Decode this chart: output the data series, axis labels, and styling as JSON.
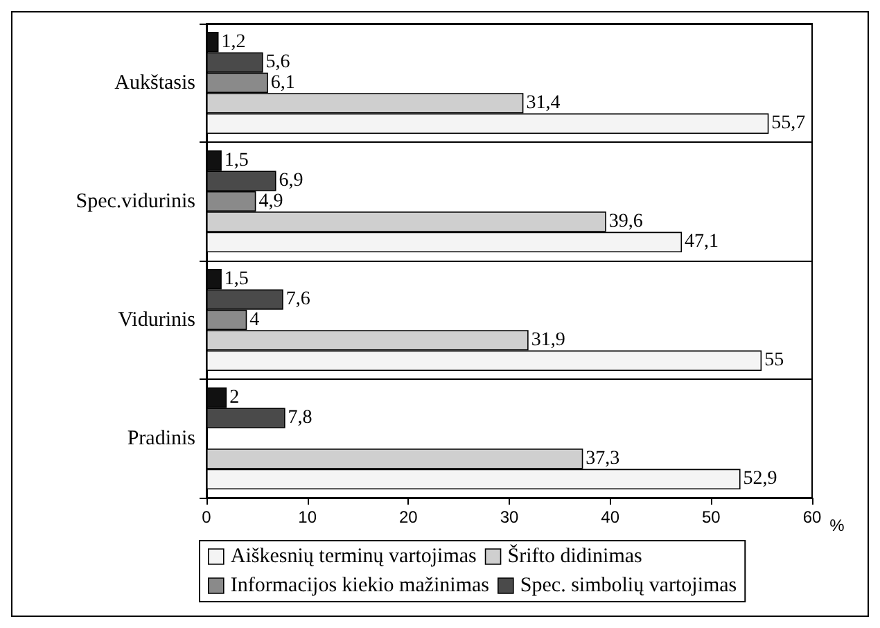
{
  "chart_data": {
    "type": "bar",
    "orientation": "horizontal",
    "categories": [
      "Aukštasis",
      "Spec.vidurinis",
      "Vidurinis",
      "Pradinis"
    ],
    "series": [
      {
        "name": "Aiškesnių terminų vartojimas",
        "color": "#f4f4f4",
        "values": [
          55.7,
          47.1,
          55,
          52.9
        ],
        "value_labels": [
          "55,7",
          "47,1",
          "55",
          "52,9"
        ]
      },
      {
        "name": "Šrifto didinimas",
        "color": "#cfcfcf",
        "values": [
          31.4,
          39.6,
          31.9,
          37.3
        ],
        "value_labels": [
          "31,4",
          "39,6",
          "31,9",
          "37,3"
        ]
      },
      {
        "name": "Informacijos kiekio mažinimas",
        "color": "#8a8a8a",
        "values": [
          6.1,
          4.9,
          4,
          null
        ],
        "value_labels": [
          "6,1",
          "4,9",
          "4",
          null
        ]
      },
      {
        "name": "Spec. simbolių vartojimas",
        "color": "#4a4a4a",
        "values": [
          5.6,
          6.9,
          7.6,
          7.8
        ],
        "value_labels": [
          "5,6",
          "6,9",
          "7,6",
          "7,8"
        ]
      },
      {
        "color": "#111111",
        "values": [
          1.2,
          1.5,
          1.5,
          2
        ],
        "value_labels": [
          "1,2",
          "1,5",
          "1,5",
          "2"
        ]
      }
    ],
    "xlabel": "%",
    "xlim": [
      0,
      60
    ],
    "xticks": [
      0,
      10,
      20,
      30,
      40,
      50,
      60
    ],
    "grid": false,
    "legend": "bottom"
  }
}
